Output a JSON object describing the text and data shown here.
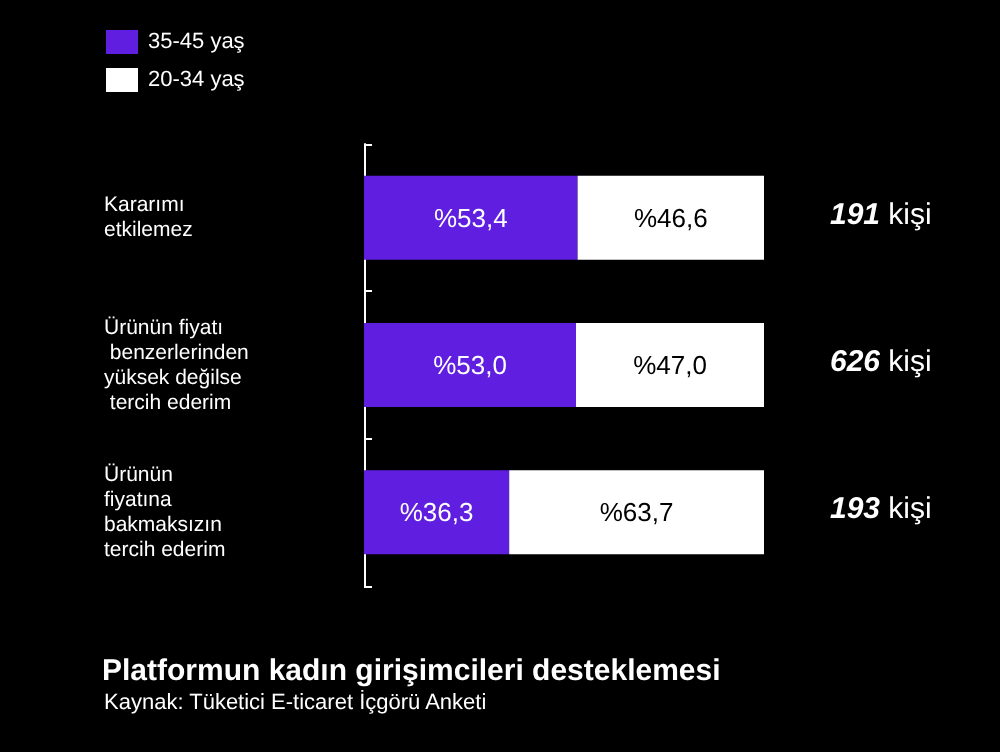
{
  "chart_data": {
    "type": "bar",
    "orientation": "horizontal",
    "stacked": true,
    "title": "Platformun kadın girişimcileri desteklemesi",
    "categories": [
      "Kararımı etkilemez",
      "Ürünün fiyatı benzerlerinden yüksek değilse tercih ederim",
      "Ürünün fiyatına bakmaksızın tercih ederim"
    ],
    "series": [
      {
        "name": "35-45 yaş",
        "color": "#5f1ee0",
        "values": [
          53.4,
          53.0,
          36.3
        ],
        "value_labels": [
          "%53,4",
          "%53,0",
          "%36,3"
        ]
      },
      {
        "name": "20-34 yaş",
        "color": "#ffffff",
        "values": [
          46.6,
          47.0,
          63.7
        ],
        "value_labels": [
          "%46,6",
          "%47,0",
          "%63,7"
        ]
      }
    ],
    "annotations": [
      "191 kişi",
      "626 kişi",
      "193 kişi",
      "Kaynak: Tüketici E-ticaret İçgörü Anketi"
    ],
    "legend": "top left",
    "grid": false,
    "tick_labels": "y"
  }
}
